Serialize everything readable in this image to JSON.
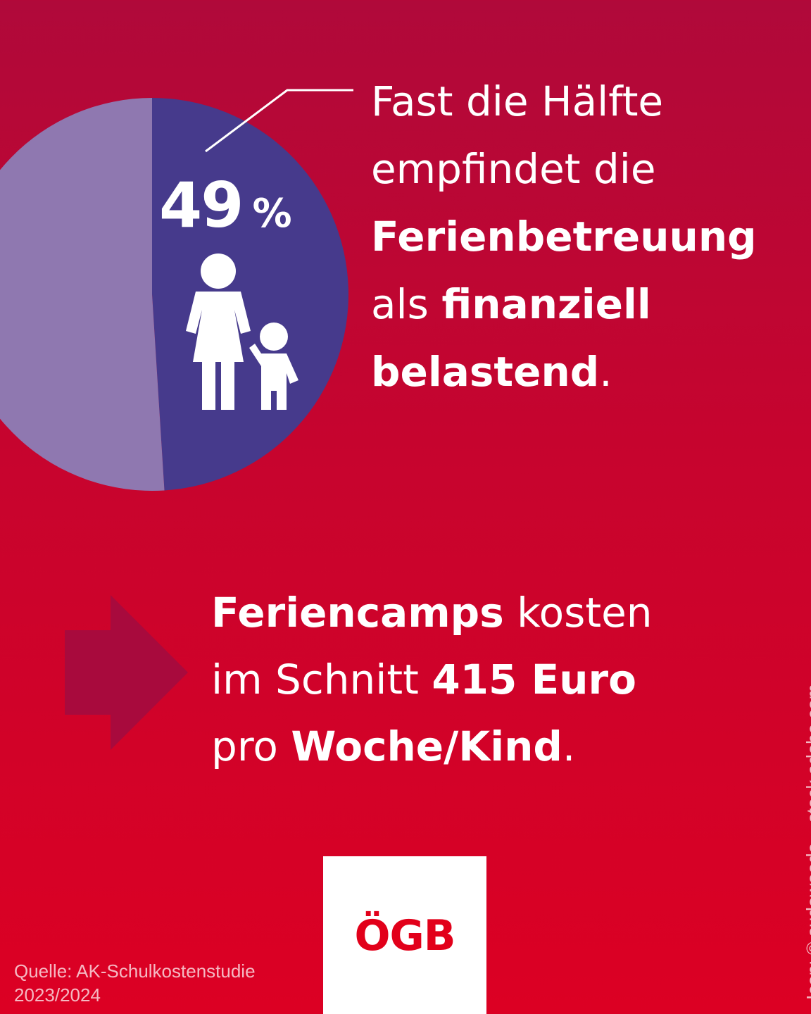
{
  "chart_data": {
    "type": "pie",
    "categories": [
      "49 %",
      ""
    ],
    "values": [
      49,
      51
    ],
    "colors": [
      "#463a8c",
      "#8f78b0"
    ],
    "label": "49 %"
  },
  "stat": {
    "number": "49",
    "unit": "%"
  },
  "icon": {
    "name": "parent-child-icon"
  },
  "headline": {
    "line1": "Fast die Hälfte",
    "line2": "empfindet die",
    "line3_bold": "Ferienbetreuung",
    "line4_pre": "als ",
    "line4_bold": "finanziell",
    "line5_bold": "belastend",
    "line5_post": "."
  },
  "camps": {
    "part1_bold": "Feriencamps",
    "part1_rest": " kosten",
    "part2_pre": "im Schnitt ",
    "part2_bold": "415 Euro",
    "part3_pre": "pro ",
    "part3_bold": "Woche/Kind",
    "part3_post": "."
  },
  "source": {
    "line1": "Quelle: AK-Schulkostenstudie",
    "line2": "2023/2024"
  },
  "credit": "Icon: © sudowoodo – stock.adobe.com",
  "logo": {
    "text": "ÖGB",
    "color": "#e2001a"
  }
}
